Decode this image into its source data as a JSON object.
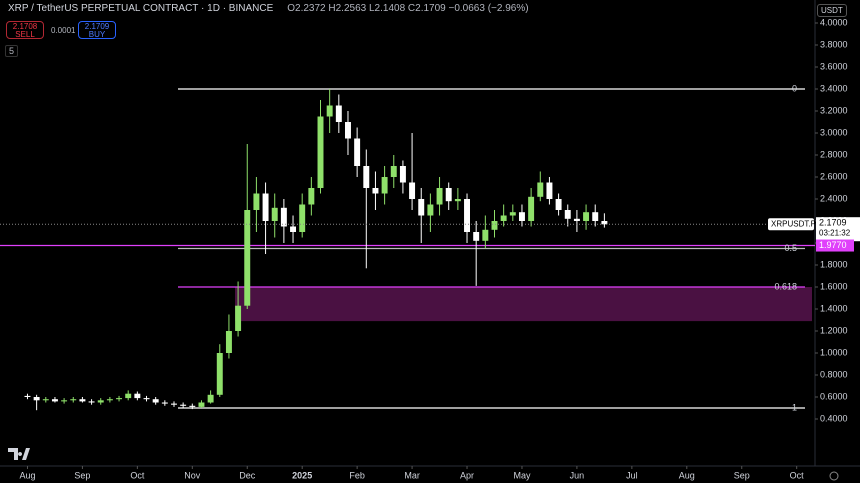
{
  "header": {
    "symbol": "XRP / TetherUS PERPETUAL CONTRACT · 1D · BINANCE",
    "ohlc": "O2.2372 H2.2563 L2.1408 C2.1709 −0.0663 (−2.96%)",
    "currency": "USDT"
  },
  "trade": {
    "sell_price": "2.1708",
    "sell": "SELL",
    "spread": "0.0001",
    "buy_price": "2.1709",
    "buy": "BUY"
  },
  "indicator_count": "5",
  "chart_data": {
    "type": "candlestick",
    "up_color": "#8fe06a",
    "down_color": "#ffffff",
    "xlim": [
      -3,
      86
    ],
    "xticks": [
      {
        "value": 0,
        "label": "Aug"
      },
      {
        "value": 6,
        "label": "Sep"
      },
      {
        "value": 12,
        "label": "Oct"
      },
      {
        "value": 18,
        "label": "Nov"
      },
      {
        "value": 24,
        "label": "Dec"
      },
      {
        "value": 30,
        "label": "2025"
      },
      {
        "value": 36,
        "label": "Feb"
      },
      {
        "value": 42,
        "label": "Mar"
      },
      {
        "value": 48,
        "label": "Apr"
      },
      {
        "value": 54,
        "label": "May"
      },
      {
        "value": 60,
        "label": "Jun"
      },
      {
        "value": 66,
        "label": "Jul"
      },
      {
        "value": 72,
        "label": "Aug"
      },
      {
        "value": 78,
        "label": "Sep"
      },
      {
        "value": 84,
        "label": "Oct"
      }
    ],
    "ylim": [
      0,
      4.2
    ],
    "yticks": [
      {
        "value": 0.4,
        "label": "0.4000"
      },
      {
        "value": 0.6,
        "label": "0.6000"
      },
      {
        "value": 0.8,
        "label": "0.8000"
      },
      {
        "value": 1.0,
        "label": "1.0000"
      },
      {
        "value": 1.2,
        "label": "1.2000"
      },
      {
        "value": 1.4,
        "label": "1.4000"
      },
      {
        "value": 1.6,
        "label": "1.6000"
      },
      {
        "value": 1.8,
        "label": "1.8000"
      },
      {
        "value": 2.0,
        "label": "2.0000"
      },
      {
        "value": 2.2,
        "label": "2.2000"
      },
      {
        "value": 2.4,
        "label": "2.4000"
      },
      {
        "value": 2.6,
        "label": "2.6000"
      },
      {
        "value": 2.8,
        "label": "2.8000"
      },
      {
        "value": 3.0,
        "label": "3.0000"
      },
      {
        "value": 3.2,
        "label": "3.2000"
      },
      {
        "value": 3.4,
        "label": "3.4000"
      },
      {
        "value": 3.6,
        "label": "3.6000"
      },
      {
        "value": 3.8,
        "label": "3.8000"
      },
      {
        "value": 4.0,
        "label": "4.0000"
      }
    ],
    "open": [
      0.61,
      0.6,
      0.57,
      0.58,
      0.56,
      0.57,
      0.58,
      0.56,
      0.55,
      0.57,
      0.58,
      0.59,
      0.63,
      0.59,
      0.58,
      0.55,
      0.54,
      0.53,
      0.52,
      0.51,
      0.55,
      0.62,
      1.0,
      1.2,
      1.43,
      2.3,
      2.45,
      2.2,
      2.32,
      2.15,
      2.1,
      2.35,
      2.5,
      3.15,
      3.25,
      3.1,
      2.95,
      2.7,
      2.5,
      2.45,
      2.6,
      2.7,
      2.55,
      2.4,
      2.25,
      2.35,
      2.5,
      2.38,
      2.4,
      2.1,
      2.02,
      2.12,
      2.2,
      2.25,
      2.28,
      2.2,
      2.42,
      2.55,
      2.4,
      2.3,
      2.22,
      2.2,
      2.28,
      2.2
    ],
    "high": [
      0.63,
      0.62,
      0.6,
      0.6,
      0.59,
      0.6,
      0.6,
      0.58,
      0.59,
      0.6,
      0.61,
      0.66,
      0.65,
      0.61,
      0.6,
      0.57,
      0.56,
      0.55,
      0.54,
      0.57,
      0.66,
      1.08,
      1.35,
      1.65,
      2.9,
      2.6,
      2.55,
      2.45,
      2.4,
      2.25,
      2.45,
      2.6,
      3.3,
      3.4,
      3.35,
      3.2,
      3.05,
      2.85,
      2.65,
      2.7,
      2.8,
      2.75,
      3.0,
      2.5,
      2.45,
      2.6,
      2.55,
      2.5,
      2.45,
      2.2,
      2.25,
      2.3,
      2.35,
      2.35,
      2.35,
      2.5,
      2.65,
      2.6,
      2.45,
      2.35,
      2.3,
      2.35,
      2.35,
      2.27
    ],
    "low": [
      0.58,
      0.48,
      0.55,
      0.55,
      0.54,
      0.55,
      0.55,
      0.53,
      0.53,
      0.55,
      0.56,
      0.57,
      0.57,
      0.56,
      0.53,
      0.52,
      0.51,
      0.5,
      0.49,
      0.5,
      0.54,
      0.6,
      0.95,
      1.15,
      1.4,
      2.1,
      1.9,
      2.05,
      2.0,
      2.0,
      2.05,
      2.25,
      2.45,
      3.0,
      3.0,
      2.8,
      2.6,
      1.77,
      2.3,
      2.35,
      2.5,
      2.45,
      2.3,
      2.0,
      2.1,
      2.25,
      2.3,
      2.3,
      2.0,
      1.61,
      1.95,
      2.05,
      2.15,
      2.2,
      2.15,
      2.15,
      2.38,
      2.35,
      2.25,
      2.15,
      2.1,
      2.12,
      2.15,
      2.14
    ],
    "close": [
      0.6,
      0.57,
      0.58,
      0.56,
      0.57,
      0.58,
      0.56,
      0.55,
      0.57,
      0.58,
      0.59,
      0.63,
      0.59,
      0.58,
      0.55,
      0.54,
      0.53,
      0.52,
      0.51,
      0.55,
      0.62,
      1.0,
      1.2,
      1.43,
      2.3,
      2.45,
      2.2,
      2.32,
      2.15,
      2.1,
      2.35,
      2.5,
      3.15,
      3.25,
      3.1,
      2.95,
      2.7,
      2.5,
      2.45,
      2.6,
      2.7,
      2.55,
      2.4,
      2.25,
      2.35,
      2.5,
      2.38,
      2.4,
      2.1,
      2.02,
      2.12,
      2.2,
      2.25,
      2.28,
      2.2,
      2.42,
      2.55,
      2.4,
      2.3,
      2.22,
      2.2,
      2.28,
      2.2,
      2.17
    ],
    "levels": [
      {
        "label": "0",
        "value": 3.4,
        "color": "#ffffff"
      },
      {
        "label": "0.5",
        "value": 1.95,
        "color": "#bbbbbb"
      },
      {
        "label": "0.618",
        "value": 1.6,
        "color": "#e040fb"
      },
      {
        "label": "1",
        "value": 0.5,
        "color": "#ffffff"
      }
    ],
    "zone": {
      "low": 1.29,
      "high": 1.6,
      "color": "#4a1142"
    },
    "hline": {
      "value": 1.977,
      "label": "1.9770",
      "color": "#e040fb"
    },
    "last_price": {
      "symbol": "XRPUSDT.P",
      "value": 2.1709,
      "countdown": "03:21:32"
    }
  }
}
